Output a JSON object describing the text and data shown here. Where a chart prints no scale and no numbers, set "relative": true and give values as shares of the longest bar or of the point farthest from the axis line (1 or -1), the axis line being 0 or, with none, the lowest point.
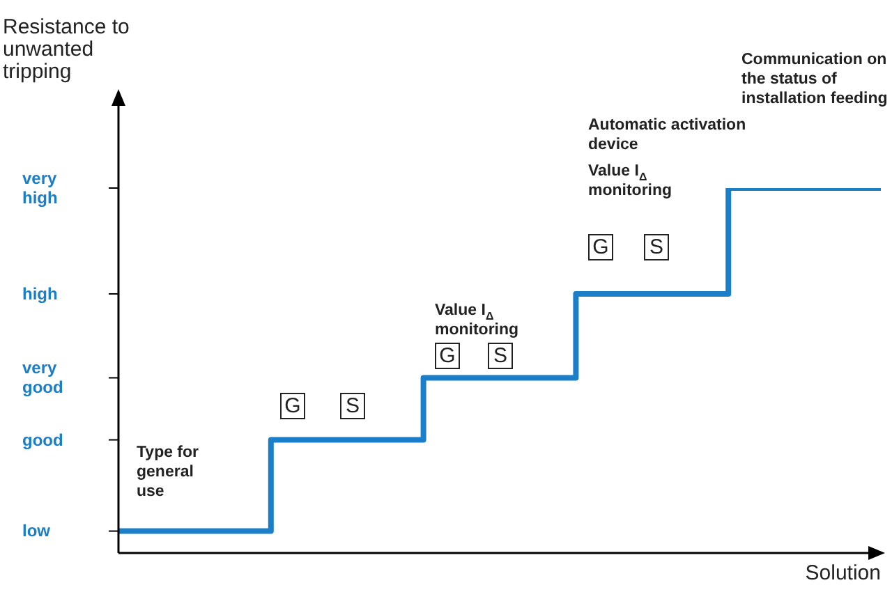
{
  "chart_data": {
    "type": "step",
    "relative": true,
    "xlabel": "Solution",
    "ylabel": "Resistance to unwanted tripping",
    "categories": [
      null,
      null,
      null,
      null,
      null,
      null
    ],
    "values": [
      0.06,
      0.31,
      0.48,
      0.71,
      1,
      1
    ],
    "color": "#1a7fc8",
    "marker": "none",
    "line_style": "solid",
    "annotations": [
      "low",
      "good",
      "very good",
      "high",
      "very high",
      "Type for general use",
      "G",
      "S",
      "Value I$_{Δ}$ monitoring",
      "G",
      "S",
      "Automatic activation device",
      "Value I$_{Δ}$ monitoring",
      "G",
      "S",
      "Communication on the status of installation feeding"
    ]
  }
}
